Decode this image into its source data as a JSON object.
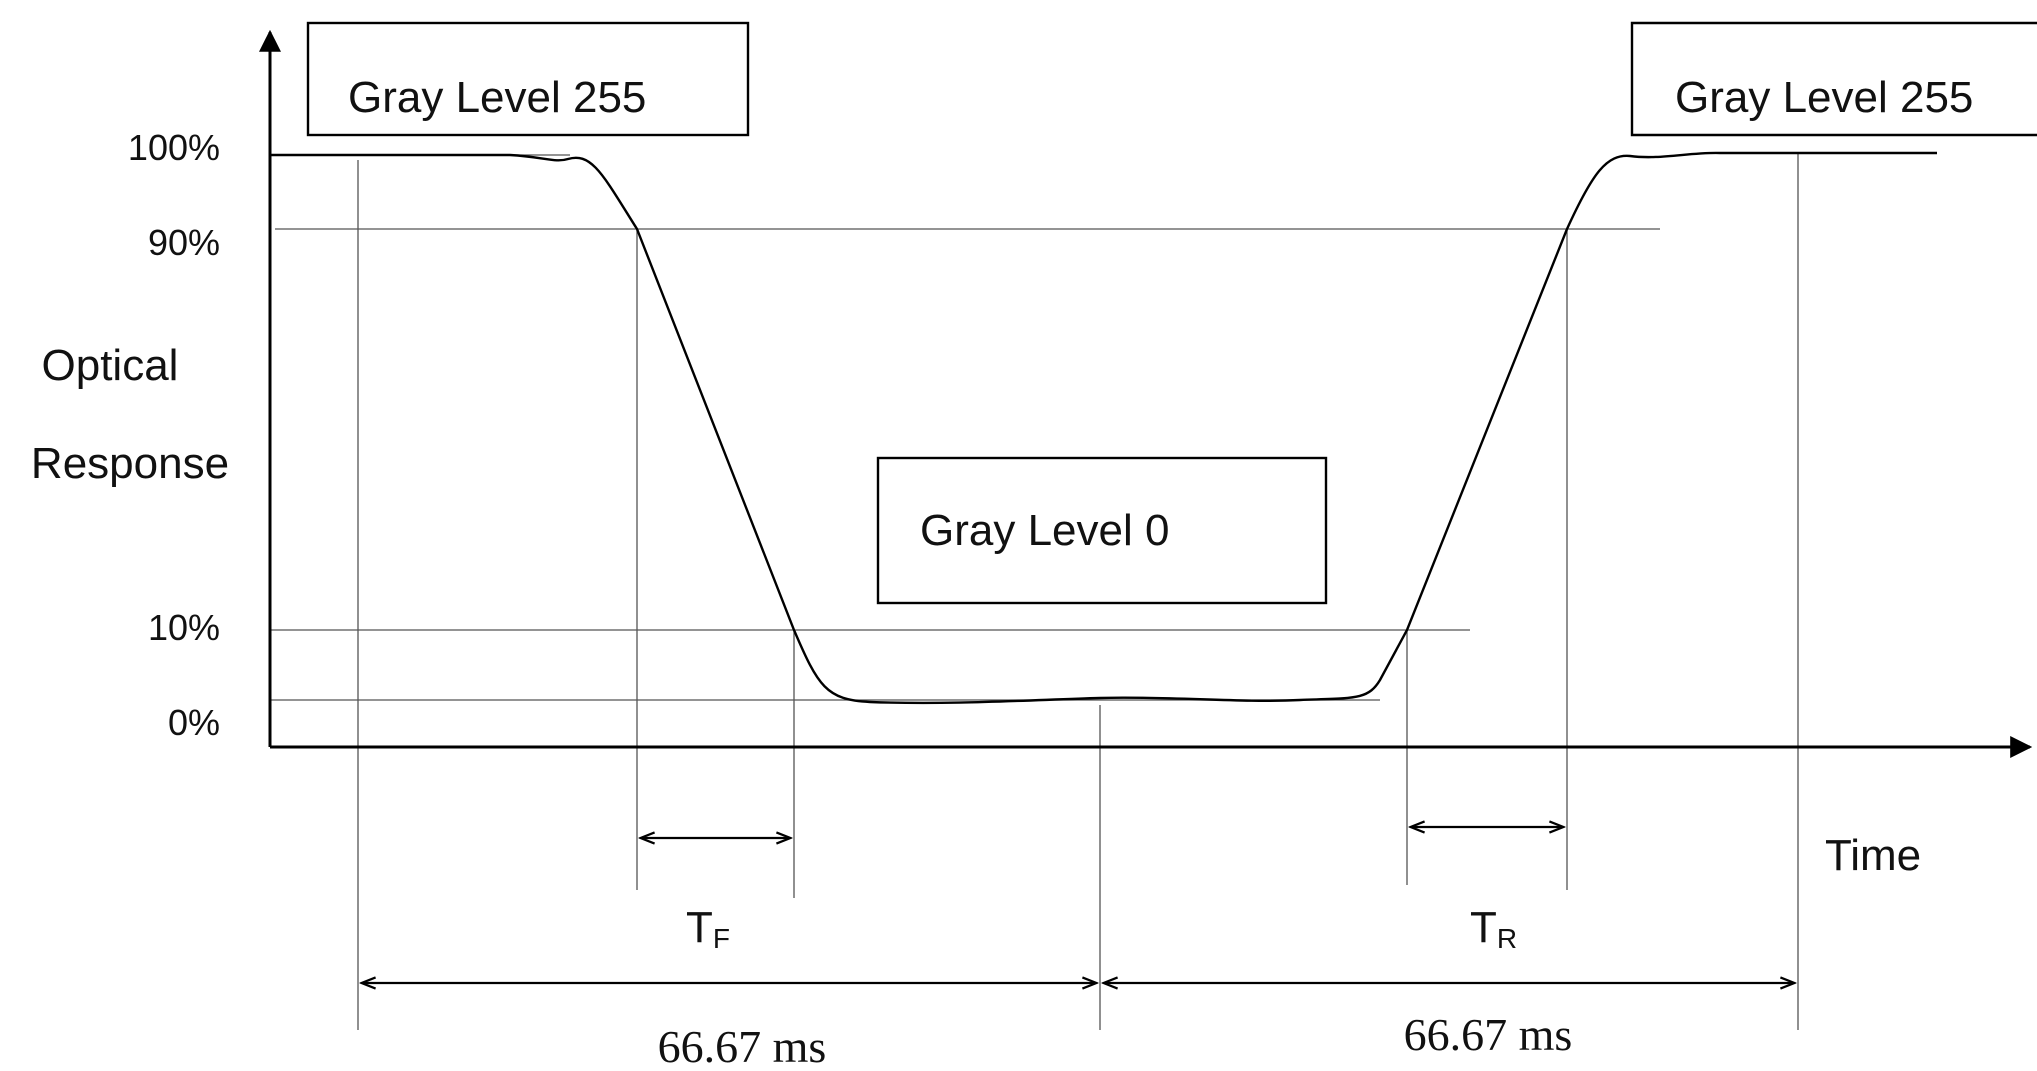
{
  "y_axis": {
    "title_line1": "Optical",
    "title_line2": "Response",
    "tick_100": "100%",
    "tick_90": "90%",
    "tick_10": "10%",
    "tick_0": "0%"
  },
  "x_axis": {
    "title": "Time"
  },
  "boxes": {
    "left": "Gray Level 255",
    "middle": "Gray Level 0",
    "right": "Gray Level 255"
  },
  "intervals": {
    "fall": {
      "main": "T",
      "sub": "F"
    },
    "rise": {
      "main": "T",
      "sub": "R"
    },
    "period_left": "66.67 ms",
    "period_right": "66.67 ms"
  }
}
